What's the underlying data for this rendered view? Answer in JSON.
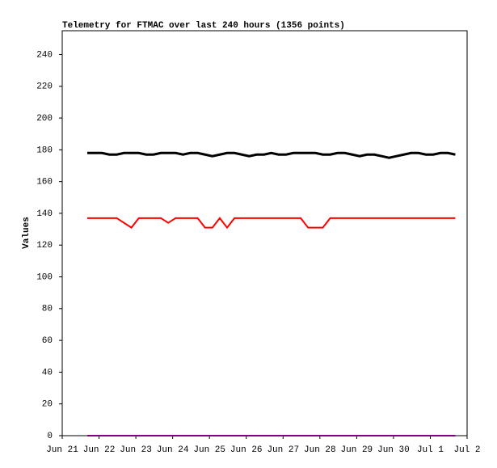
{
  "chart_data": {
    "type": "line",
    "title": "Telemetry for FTMAC over last 240 hours (1356 points)",
    "y_label": "Values",
    "x": [
      0.68,
      0.88,
      1.08,
      1.28,
      1.48,
      1.68,
      1.88,
      2.08,
      2.28,
      2.48,
      2.68,
      2.88,
      3.08,
      3.28,
      3.48,
      3.68,
      3.88,
      4.08,
      4.28,
      4.48,
      4.68,
      4.88,
      5.08,
      5.28,
      5.48,
      5.68,
      5.88,
      6.08,
      6.28,
      6.48,
      6.68,
      6.88,
      7.08,
      7.28,
      7.48,
      7.68,
      7.88,
      8.08,
      8.28,
      8.48,
      8.68,
      8.88,
      9.08,
      9.28,
      9.48,
      9.68,
      9.88,
      10.08,
      10.28,
      10.48,
      10.68
    ],
    "xlim": [
      0,
      11
    ],
    "xticks": [
      {
        "value": 0,
        "label": "Jun 21"
      },
      {
        "value": 1,
        "label": "Jun 22"
      },
      {
        "value": 2,
        "label": "Jun 23"
      },
      {
        "value": 3,
        "label": "Jun 24"
      },
      {
        "value": 4,
        "label": "Jun 25"
      },
      {
        "value": 5,
        "label": "Jun 26"
      },
      {
        "value": 6,
        "label": "Jun 27"
      },
      {
        "value": 7,
        "label": "Jun 28"
      },
      {
        "value": 8,
        "label": "Jun 29"
      },
      {
        "value": 9,
        "label": "Jun 30"
      },
      {
        "value": 10,
        "label": "Jul 1"
      },
      {
        "value": 11,
        "label": "Jul 2"
      }
    ],
    "ylim": [
      0,
      255
    ],
    "yticks": [
      0,
      20,
      40,
      60,
      80,
      100,
      120,
      140,
      160,
      180,
      200,
      220,
      240
    ],
    "series": [
      {
        "color": "#000000",
        "values": [
          178,
          178,
          178,
          177,
          177,
          178,
          178,
          178,
          177,
          177,
          178,
          178,
          178,
          177,
          178,
          178,
          177,
          176,
          177,
          178,
          178,
          177,
          176,
          177,
          177,
          178,
          177,
          177,
          178,
          178,
          178,
          178,
          177,
          177,
          178,
          178,
          177,
          176,
          177,
          177,
          176,
          175,
          176,
          177,
          178,
          178,
          177,
          177,
          178,
          178,
          177
        ]
      },
      {
        "color": "#ff0000",
        "values": [
          137,
          137,
          137,
          137,
          137,
          134,
          131,
          137,
          137,
          137,
          137,
          134,
          137,
          137,
          137,
          137,
          131,
          131,
          137,
          131,
          137,
          137,
          137,
          137,
          137,
          137,
          137,
          137,
          137,
          137,
          131,
          131,
          131,
          137,
          137,
          137,
          137,
          137,
          137,
          137,
          137,
          137,
          137,
          137,
          137,
          137,
          137,
          137,
          137,
          137,
          137
        ]
      },
      {
        "color": "#800080",
        "values": [
          0,
          0,
          0,
          0,
          0,
          0,
          0,
          0,
          0,
          0,
          0,
          0,
          0,
          0,
          0,
          0,
          0,
          0,
          0,
          0,
          0,
          0,
          0,
          0,
          0,
          0,
          0,
          0,
          0,
          0,
          0,
          0,
          0,
          0,
          0,
          0,
          0,
          0,
          0,
          0,
          0,
          0,
          0,
          0,
          0,
          0,
          0,
          0,
          0,
          0,
          0
        ]
      }
    ]
  }
}
